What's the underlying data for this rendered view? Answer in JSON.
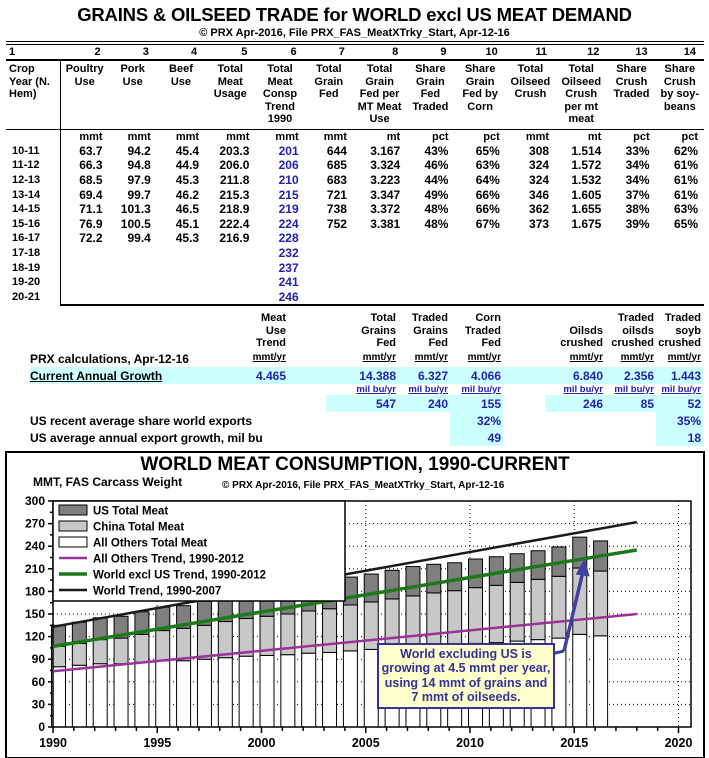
{
  "page": {
    "title": "GRAINS & OILSEED TRADE for WORLD excl US MEAT DEMAND",
    "subtitle": "© PRX Apr-2016, File PRX_FAS_MeatXTrky_Start, Apr-12-16"
  },
  "colors": {
    "blue_text": "#2121b0",
    "highlight_cyan": "#ccffff",
    "annotation_blue": "#32329b",
    "annotation_bg": "#ffffcc"
  },
  "table": {
    "col_numbers": [
      "1",
      "2",
      "3",
      "4",
      "5",
      "6",
      "7",
      "8",
      "9",
      "10",
      "11",
      "12",
      "13",
      "14"
    ],
    "headers": [
      [
        "Crop",
        "Year (N.",
        "Hem)"
      ],
      [
        "Poultry",
        "Use"
      ],
      [
        "Pork",
        "Use"
      ],
      [
        "Beef",
        "Use"
      ],
      [
        "Total",
        "Meat",
        "Usage"
      ],
      [
        "Total",
        "Meat",
        "Consp",
        "Trend",
        "1990"
      ],
      [
        "Total",
        "Grain",
        "Fed"
      ],
      [
        "Total",
        "Grain",
        "Fed per",
        "MT Meat",
        "Use"
      ],
      [
        "Share",
        "Grain",
        "Fed",
        "Traded"
      ],
      [
        "Share",
        "Grain",
        "Fed by",
        "Corn"
      ],
      [
        "Total",
        "Oilseed",
        "Crush"
      ],
      [
        "Total",
        "Oilseed",
        "Crush",
        "per mt",
        "meat"
      ],
      [
        "Share",
        "Crush",
        "Traded"
      ],
      [
        "Share",
        "Crush",
        "by soy-",
        "beans"
      ]
    ],
    "units": [
      "",
      "mmt",
      "mmt",
      "mmt",
      "mmt",
      "mmt",
      "mmt",
      "mt",
      "pct",
      "pct",
      "mmt",
      "mt",
      "pct",
      "pct"
    ],
    "rows": [
      [
        "10-11",
        "63.7",
        "94.2",
        "45.4",
        "203.3",
        "201",
        "644",
        "3.167",
        "43%",
        "65%",
        "308",
        "1.514",
        "33%",
        "62%"
      ],
      [
        "11-12",
        "66.3",
        "94.8",
        "44.9",
        "206.0",
        "206",
        "685",
        "3.324",
        "46%",
        "63%",
        "324",
        "1.572",
        "34%",
        "61%"
      ],
      [
        "12-13",
        "68.5",
        "97.9",
        "45.3",
        "211.8",
        "210",
        "683",
        "3.223",
        "44%",
        "64%",
        "324",
        "1.532",
        "34%",
        "61%"
      ],
      [
        "13-14",
        "69.4",
        "99.7",
        "46.2",
        "215.3",
        "215",
        "721",
        "3.347",
        "49%",
        "66%",
        "346",
        "1.605",
        "37%",
        "61%"
      ],
      [
        "14-15",
        "71.1",
        "101.3",
        "46.5",
        "218.9",
        "219",
        "738",
        "3.372",
        "48%",
        "66%",
        "362",
        "1.655",
        "38%",
        "63%"
      ],
      [
        "15-16",
        "76.9",
        "100.5",
        "45.1",
        "222.4",
        "224",
        "752",
        "3.381",
        "48%",
        "67%",
        "373",
        "1.675",
        "39%",
        "65%"
      ],
      [
        "16-17",
        "72.2",
        "99.4",
        "45.3",
        "216.9",
        "228",
        "",
        "",
        "",
        "",
        "",
        "",
        "",
        ""
      ],
      [
        "17-18",
        "",
        "",
        "",
        "",
        "232",
        "",
        "",
        "",
        "",
        "",
        "",
        "",
        ""
      ],
      [
        "18-19",
        "",
        "",
        "",
        "",
        "237",
        "",
        "",
        "",
        "",
        "",
        "",
        "",
        ""
      ],
      [
        "19-20",
        "",
        "",
        "",
        "",
        "241",
        "",
        "",
        "",
        "",
        "",
        "",
        "",
        ""
      ],
      [
        "20-21",
        "",
        "",
        "",
        "",
        "246",
        "",
        "",
        "",
        "",
        "",
        "",
        "",
        ""
      ]
    ]
  },
  "calc": {
    "headers": [
      [
        "Meat",
        "Use",
        "Trend"
      ],
      [
        "Total",
        "Grains",
        "Fed"
      ],
      [
        "Traded",
        "Grains",
        "Fed"
      ],
      [
        "Corn",
        "Traded",
        "Fed"
      ],
      [
        "Oilsds",
        "crushed"
      ],
      [
        "Traded",
        "oilsds",
        "crushed"
      ],
      [
        "Traded",
        "soyb",
        "crushed"
      ]
    ],
    "prx_label": "PRX calculations, Apr-12-16",
    "unit_mmt": "mmt/yr",
    "growth_label": "Current Annual Growth",
    "growth_values": [
      "4.465",
      "14.388",
      "6.327",
      "4.066",
      "6.840",
      "2.356",
      "1.443"
    ],
    "unit_milbu": "mil bu/yr",
    "milbu_values": [
      "547",
      "240",
      "155",
      "246",
      "85",
      "52"
    ],
    "share_label": "US recent average share world exports",
    "share_corn": "32%",
    "share_soyb": "35%",
    "export_label": "US average annual export growth, mil bu",
    "export_corn": "49",
    "export_soyb": "18"
  },
  "chart_data": {
    "type": "bar",
    "title": "WORLD MEAT CONSUMPTION, 1990-CURRENT",
    "ylabel": "MMT, FAS Carcass Weight",
    "copyright": "© PRX Apr-2016, File PRX_FAS_MeatXTrky_Start, Apr-12-16",
    "ylim": [
      0,
      300
    ],
    "ytick_step": 30,
    "xticks": [
      1990,
      1995,
      2000,
      2005,
      2010,
      2015,
      2020
    ],
    "xlim": [
      1990,
      2020
    ],
    "grid": "dotted",
    "legend_position": "top-left",
    "years": [
      1990,
      1991,
      1992,
      1993,
      1994,
      1995,
      1996,
      1997,
      1998,
      1999,
      2000,
      2001,
      2002,
      2003,
      2004,
      2005,
      2006,
      2007,
      2008,
      2009,
      2010,
      2011,
      2012,
      2013,
      2014,
      2015,
      2016
    ],
    "stack_order_bottom_to_top": [
      "All Others Total Meat",
      "China Total Meat",
      "US Total Meat"
    ],
    "series": [
      {
        "name": "US Total Meat",
        "color": "#7f7f7f",
        "values": [
          28,
          28,
          29,
          29,
          30,
          31,
          30,
          32,
          33,
          34,
          35,
          35,
          36,
          36,
          37,
          37,
          38,
          39,
          38,
          37,
          38,
          38,
          38,
          38,
          39,
          41,
          40
        ]
      },
      {
        "name": "China Total Meat",
        "color": "#c8c8c8",
        "values": [
          27,
          29,
          32,
          34,
          37,
          40,
          43,
          45,
          48,
          50,
          52,
          54,
          56,
          58,
          61,
          63,
          66,
          68,
          70,
          72,
          74,
          76,
          78,
          80,
          82,
          88,
          86
        ]
      },
      {
        "name": "All Others Total Meat",
        "color": "#ffffff",
        "values": [
          80,
          82,
          84,
          84,
          86,
          88,
          88,
          90,
          92,
          94,
          95,
          96,
          98,
          99,
          101,
          103,
          104,
          106,
          108,
          109,
          111,
          112,
          114,
          116,
          118,
          123,
          121
        ]
      }
    ],
    "trends": [
      {
        "name": "All Others Trend, 1990-2012",
        "color": "#993399",
        "width": 2.5,
        "x": [
          1990,
          2018
        ],
        "y": [
          74,
          150
        ]
      },
      {
        "name": "World excl US Trend, 1990-2012",
        "color": "#1a7a1a",
        "width": 3.5,
        "x": [
          1990,
          2018
        ],
        "y": [
          107,
          235
        ]
      },
      {
        "name": "World Trend, 1990-2007",
        "color": "#1a1a1a",
        "width": 2.5,
        "x": [
          1990,
          2018
        ],
        "y": [
          133,
          272
        ]
      }
    ],
    "legend": [
      {
        "swatch": "bar",
        "label": "US Total Meat",
        "color": "#7f7f7f"
      },
      {
        "swatch": "bar",
        "label": "China Total Meat",
        "color": "#c8c8c8"
      },
      {
        "swatch": "bar",
        "label": "All Others Total Meat",
        "color": "#ffffff"
      },
      {
        "swatch": "line",
        "label": "All Others Trend, 1990-2012",
        "color": "#993399",
        "h": 2.5
      },
      {
        "swatch": "line",
        "label": "World excl US Trend, 1990-2012",
        "color": "#1a7a1a",
        "h": 3.5
      },
      {
        "swatch": "line",
        "label": "World Trend, 1990-2007",
        "color": "#1a1a1a",
        "h": 2.5
      }
    ],
    "annotation": {
      "text": "World excluding US is growing at 4.5 mmt per year, using 14 mmt of grains and 7 mmt of oilseeds.",
      "arrow_to_year": 2015.5,
      "arrow_to_value": 221
    }
  }
}
